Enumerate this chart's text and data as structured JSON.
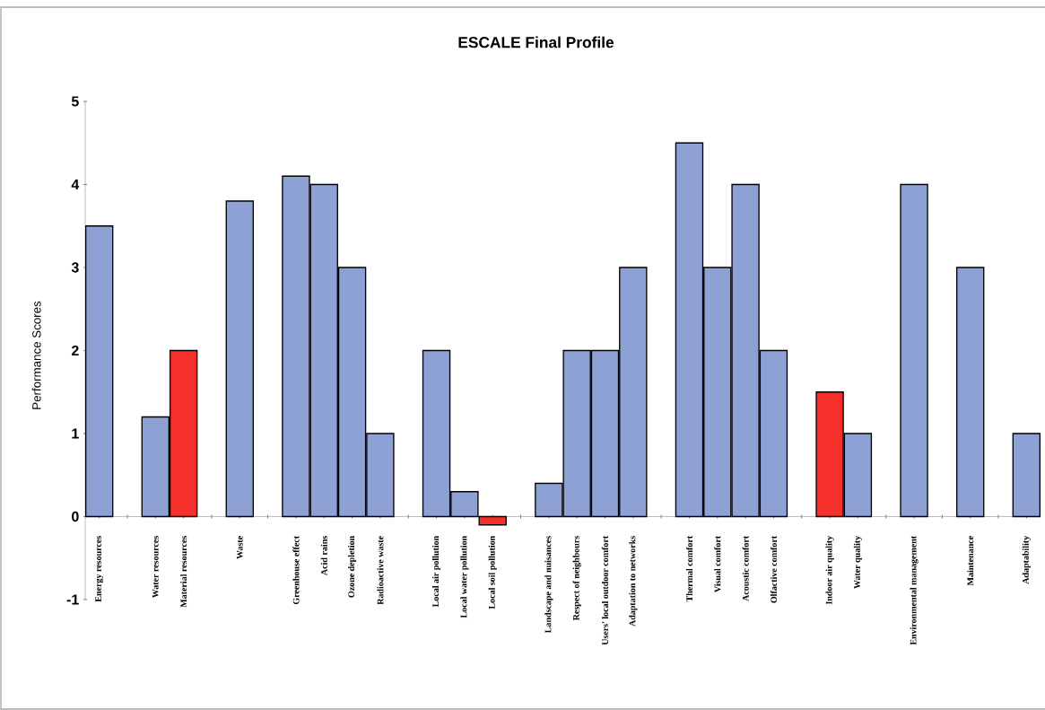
{
  "chart_data": {
    "type": "bar",
    "title": "ESCALE Final Profile",
    "ylabel": "Performance Scores",
    "categories": [
      "Energy resources",
      null,
      "Water resources",
      "Material resources",
      null,
      "Waste",
      null,
      "Greenhouse effect",
      "Acid rains",
      "Ozone depletion",
      "Radioactive waste",
      null,
      "Local air pollution",
      "Local water pollution",
      "Local soil pollution",
      null,
      "Landscape and nuisances",
      "Respect of neighbours",
      "Users' local outdoor comfort",
      "Adaptation to networks",
      null,
      "Thermal comfort",
      "Visual comfort",
      "Acoustic comfort",
      "Olfactive comfort",
      null,
      "Indoor air quality",
      "Water quality",
      null,
      "Environmental management",
      null,
      "Maintenance",
      null,
      "Adaptability"
    ],
    "values": [
      3.5,
      null,
      1.2,
      2.0,
      null,
      3.8,
      null,
      4.1,
      4.0,
      3.0,
      1.0,
      null,
      2.0,
      0.3,
      -0.1,
      null,
      0.4,
      2.0,
      2.0,
      3.0,
      null,
      4.5,
      3.0,
      4.0,
      2.0,
      null,
      1.5,
      1.0,
      null,
      4.0,
      null,
      3.0,
      null,
      1.0
    ],
    "colors": [
      "#8ea1d4",
      null,
      "#8ea1d4",
      "#f5302b",
      null,
      "#8ea1d4",
      null,
      "#8ea1d4",
      "#8ea1d4",
      "#8ea1d4",
      "#8ea1d4",
      null,
      "#8ea1d4",
      "#8ea1d4",
      "#f5302b",
      null,
      "#8ea1d4",
      "#8ea1d4",
      "#8ea1d4",
      "#8ea1d4",
      null,
      "#8ea1d4",
      "#8ea1d4",
      "#8ea1d4",
      "#8ea1d4",
      null,
      "#f5302b",
      "#8ea1d4",
      null,
      "#8ea1d4",
      null,
      "#8ea1d4",
      null,
      "#8ea1d4"
    ],
    "ylim": [
      -1,
      5
    ],
    "yticks": [
      -1,
      0,
      1,
      2,
      3,
      4,
      5
    ]
  }
}
